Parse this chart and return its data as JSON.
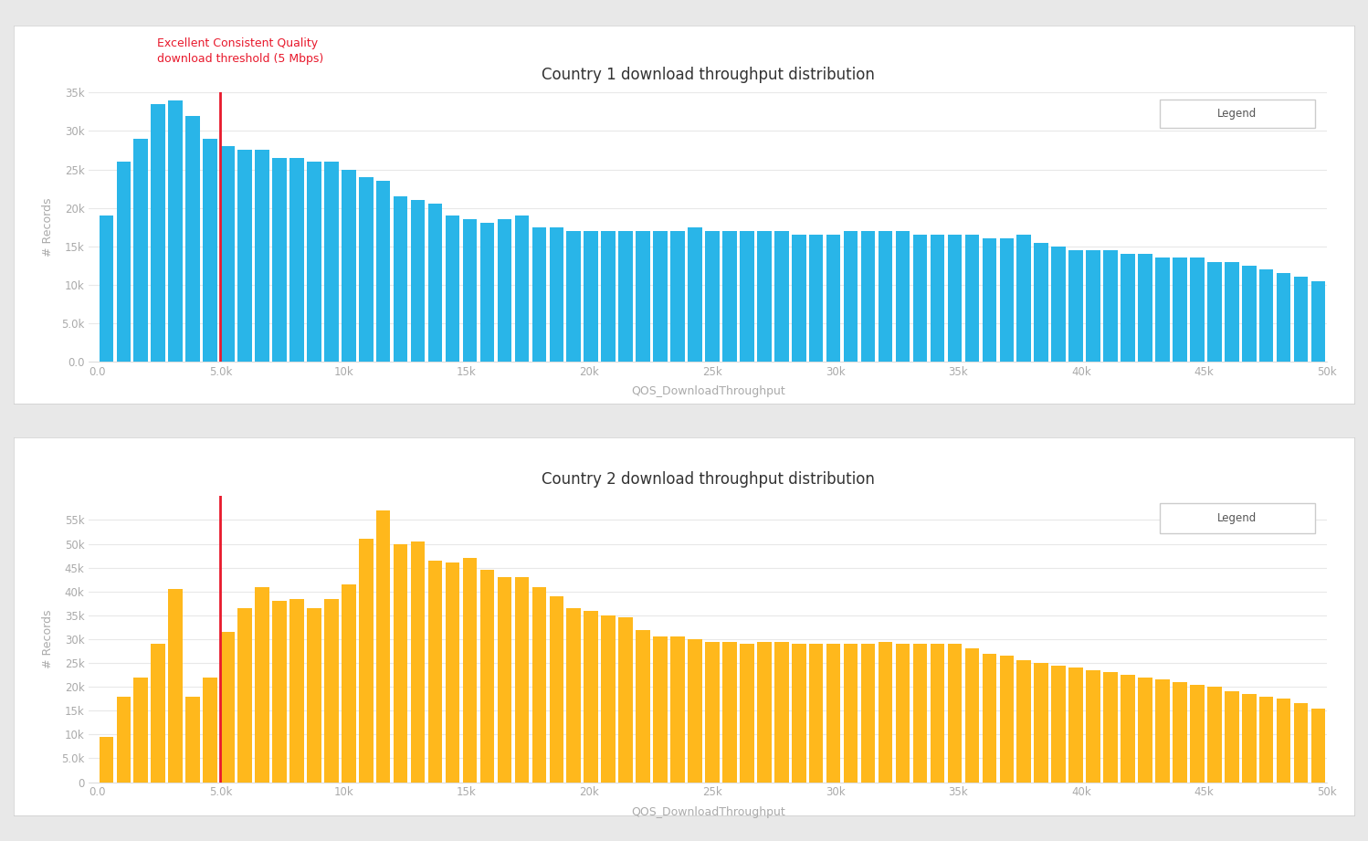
{
  "title1": "Country 1 download throughput distribution",
  "title2": "Country 2 download throughput distribution",
  "xlabel": "QOS_DownloadThroughput",
  "ylabel": "# Records",
  "threshold_x": 5000,
  "threshold_label_line1": "Excellent Consistent Quality",
  "threshold_label_line2": "download threshold (5 Mbps)",
  "threshold_color": "#e8192c",
  "bar_color1": "#29b5e8",
  "bar_color2": "#ffb81c",
  "outer_bg": "#e8e8e8",
  "panel_bg": "#ffffff",
  "legend_label": "Legend",
  "xlim": [
    0,
    50000
  ],
  "x_tick_labels": [
    "0.0",
    "5.0k",
    "10k",
    "15k",
    "20k",
    "25k",
    "30k",
    "35k",
    "40k",
    "45k",
    "50k"
  ],
  "x_tick_positions": [
    0,
    5000,
    10000,
    15000,
    20000,
    25000,
    30000,
    35000,
    40000,
    45000,
    50000
  ],
  "values1": [
    19000,
    26000,
    29000,
    33500,
    34000,
    32000,
    29000,
    28000,
    27500,
    27500,
    26500,
    26500,
    26000,
    26000,
    25000,
    24000,
    23500,
    21500,
    21000,
    20500,
    19000,
    18500,
    18000,
    18500,
    19000,
    17500,
    17500,
    17000,
    17000,
    17000,
    17000,
    17000,
    17000,
    17000,
    17500,
    17000,
    17000,
    17000,
    17000,
    17000,
    16500,
    16500,
    16500,
    17000,
    17000,
    17000,
    17000,
    16500,
    16500,
    16500,
    16500,
    16000,
    16000,
    16500,
    15500,
    15000,
    14500,
    14500,
    14500,
    14000,
    14000,
    13500,
    13500,
    13500,
    13000,
    13000,
    12500,
    12000,
    11500,
    11000,
    10500
  ],
  "values2": [
    9500,
    18000,
    22000,
    29000,
    40500,
    18000,
    22000,
    31500,
    36500,
    41000,
    38000,
    38500,
    36500,
    38500,
    41500,
    51000,
    57000,
    50000,
    50500,
    46500,
    46000,
    47000,
    44500,
    43000,
    43000,
    41000,
    39000,
    36500,
    36000,
    35000,
    34500,
    32000,
    30500,
    30500,
    30000,
    29500,
    29500,
    29000,
    29500,
    29500,
    29000,
    29000,
    29000,
    29000,
    29000,
    29500,
    29000,
    29000,
    29000,
    29000,
    28000,
    27000,
    26500,
    25500,
    25000,
    24500,
    24000,
    23500,
    23000,
    22500,
    22000,
    21500,
    21000,
    20500,
    20000,
    19000,
    18500,
    18000,
    17500,
    16500,
    15500
  ],
  "ylim1": [
    0,
    35000
  ],
  "ylim2": [
    0,
    60000
  ],
  "ytick_labels1": [
    "0.0",
    "5.0k",
    "10k",
    "15k",
    "20k",
    "25k",
    "30k",
    "35k"
  ],
  "ytick_positions1": [
    0,
    5000,
    10000,
    15000,
    20000,
    25000,
    30000,
    35000
  ],
  "ytick_labels2": [
    "0",
    "5.0k",
    "10k",
    "15k",
    "20k",
    "25k",
    "30k",
    "35k",
    "40k",
    "45k",
    "50k",
    "55k"
  ],
  "ytick_positions2": [
    0,
    5000,
    10000,
    15000,
    20000,
    25000,
    30000,
    35000,
    40000,
    45000,
    50000,
    55000
  ]
}
